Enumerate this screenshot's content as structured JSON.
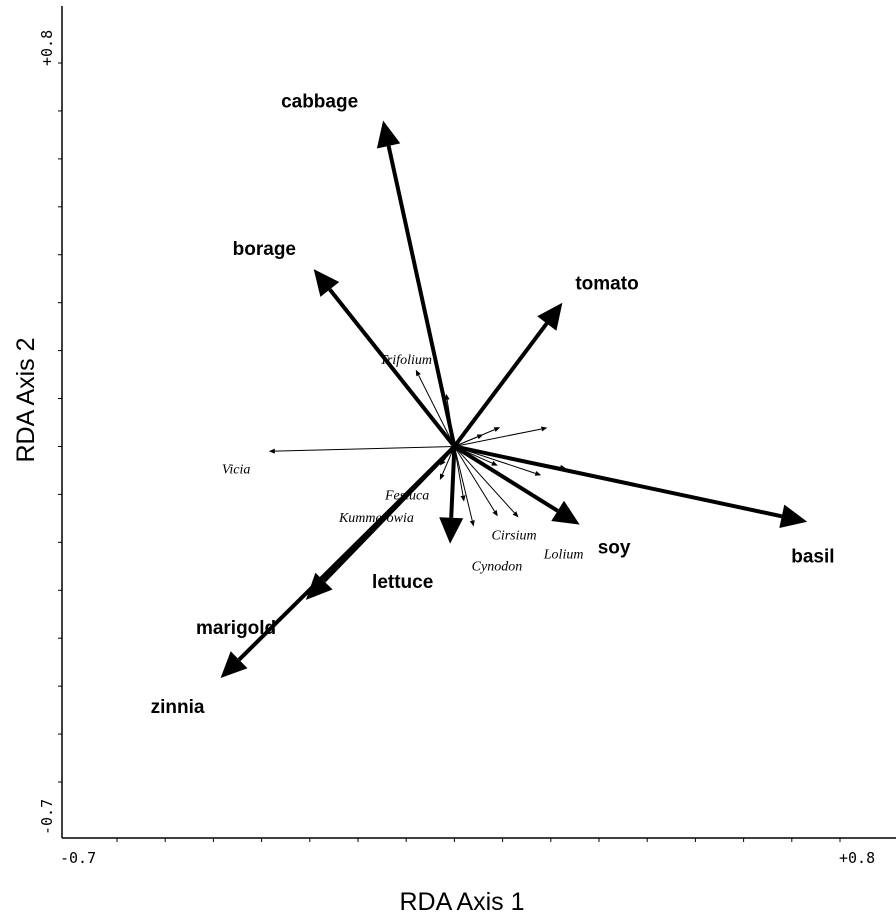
{
  "chart_data": {
    "type": "biplot",
    "xlabel": "RDA Axis 1",
    "ylabel": "RDA Axis 2",
    "xlim": [
      -0.7,
      0.8
    ],
    "ylim": [
      -0.7,
      0.8
    ],
    "x_tick_labels": [
      "-0.7",
      "+0.8"
    ],
    "y_tick_labels": [
      "+0.8",
      "-0.7"
    ],
    "origin": [
      0.0,
      0.0
    ],
    "treatment_vectors": [
      {
        "name": "cabbage",
        "x": -0.148,
        "y": 0.68
      },
      {
        "name": "borage",
        "x": -0.292,
        "y": 0.37
      },
      {
        "name": "tomato",
        "x": 0.224,
        "y": 0.3
      },
      {
        "name": "basil",
        "x": 0.732,
        "y": -0.157
      },
      {
        "name": "soy",
        "x": 0.26,
        "y": -0.163
      },
      {
        "name": "lettuce",
        "x": -0.009,
        "y": -0.203
      },
      {
        "name": "marigold",
        "x": -0.308,
        "y": -0.32
      },
      {
        "name": "zinnia",
        "x": -0.485,
        "y": -0.483
      }
    ],
    "species_vectors": [
      {
        "name": "Trifolium",
        "x": -0.08,
        "y": 0.16
      },
      {
        "name": "Vicia",
        "x": -0.385,
        "y": -0.01
      },
      {
        "name": "Festuca",
        "x": -0.03,
        "y": -0.04
      },
      {
        "name": "Kummerowia",
        "x": -0.03,
        "y": -0.07
      },
      {
        "name": "Cirsium",
        "x": 0.133,
        "y": -0.148
      },
      {
        "name": "Cynodon",
        "x": 0.04,
        "y": -0.167
      },
      {
        "name": "Lolium",
        "x": 0.09,
        "y": -0.146
      },
      {
        "name": "",
        "x": 0.095,
        "y": 0.04
      },
      {
        "name": "",
        "x": 0.193,
        "y": 0.039
      },
      {
        "name": "",
        "x": 0.232,
        "y": -0.046
      },
      {
        "name": "",
        "x": 0.09,
        "y": -0.04
      },
      {
        "name": "",
        "x": -0.017,
        "y": 0.11
      },
      {
        "name": "",
        "x": 0.06,
        "y": 0.025
      },
      {
        "name": "",
        "x": 0.02,
        "y": -0.115
      },
      {
        "name": "",
        "x": 0.18,
        "y": -0.06
      }
    ]
  }
}
